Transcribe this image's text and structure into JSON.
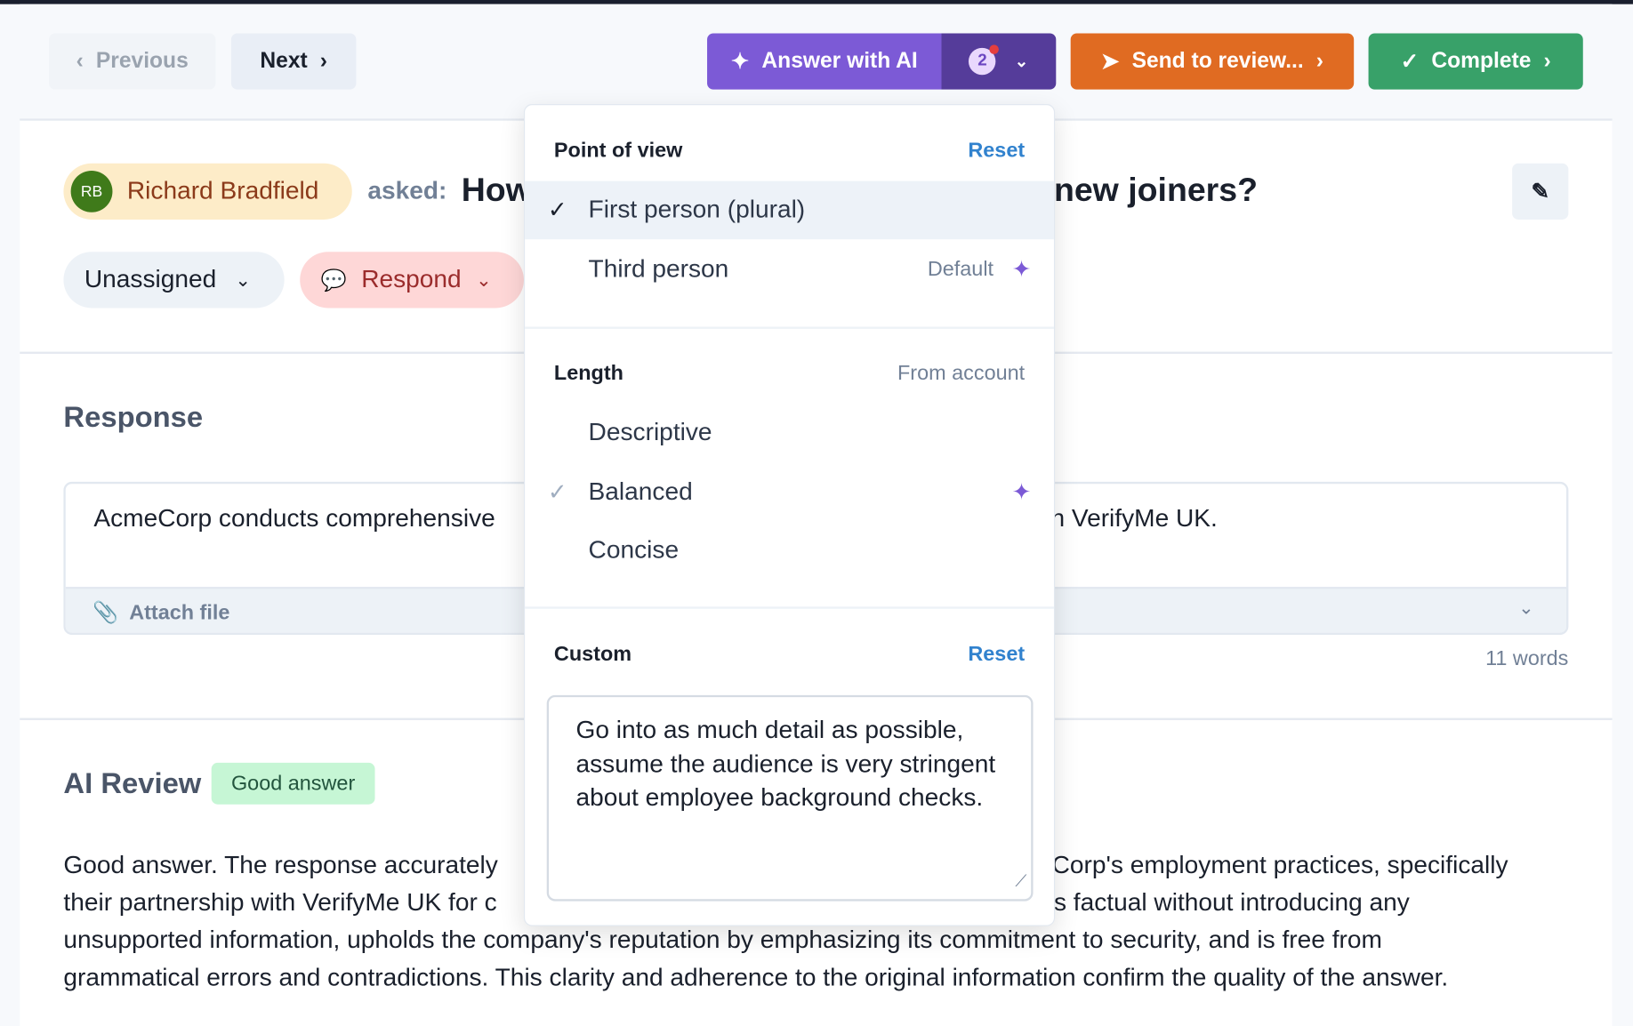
{
  "toolbar": {
    "previous_label": "Previous",
    "next_label": "Next",
    "answer_ai_label": "Answer with AI",
    "ai_options_count": "2",
    "send_review_label": "Send to review...",
    "complete_label": "Complete"
  },
  "question": {
    "asker_initials": "RB",
    "asker_name": "Richard Bradfield",
    "asked_label": "asked:",
    "title_start": "How",
    "title_end": "new joiners?",
    "assignee": "Unassigned",
    "status": "Respond"
  },
  "response": {
    "heading": "Response",
    "text_start": "AcmeCorp conducts comprehensive",
    "text_end": "n VerifyMe UK.",
    "attach_label": "Attach file",
    "word_count": "11 words"
  },
  "ai_review": {
    "heading": "AI Review",
    "badge": "Good answer",
    "lines": [
      {
        "start": "Good answer. The response accurately",
        "end": "Corp's employment practices, specifically"
      },
      {
        "start": "their partnership with VerifyMe UK for c",
        "end": "s factual without introducing any"
      },
      {
        "start": "unsupported information, upholds the company's reputation by emphasizing its commitment to security, and is free from",
        "end": ""
      },
      {
        "start": "grammatical errors and contradictions. This clarity and adherence to the original information confirm the quality of the answer.",
        "end": ""
      }
    ]
  },
  "dropdown": {
    "point_of_view": {
      "heading": "Point of view",
      "reset_label": "Reset",
      "options": [
        {
          "label": "First person (plural)",
          "selected": true
        },
        {
          "label": "Third person",
          "note": "Default",
          "ai_suggested": true
        }
      ]
    },
    "length": {
      "heading": "Length",
      "note": "From account",
      "options": [
        {
          "label": "Descriptive"
        },
        {
          "label": "Balanced",
          "selected": true,
          "ai_suggested": true
        },
        {
          "label": "Concise"
        }
      ]
    },
    "custom": {
      "heading": "Custom",
      "reset_label": "Reset",
      "value": "Go into as much detail as possible, assume the audience is very stringent about employee background checks."
    }
  },
  "colors": {
    "ai_purple": "#7c5ad6",
    "ai_purple_dark": "#553c9a",
    "review_orange": "#e06b22",
    "complete_green": "#38a169",
    "link_blue": "#3182ce"
  }
}
